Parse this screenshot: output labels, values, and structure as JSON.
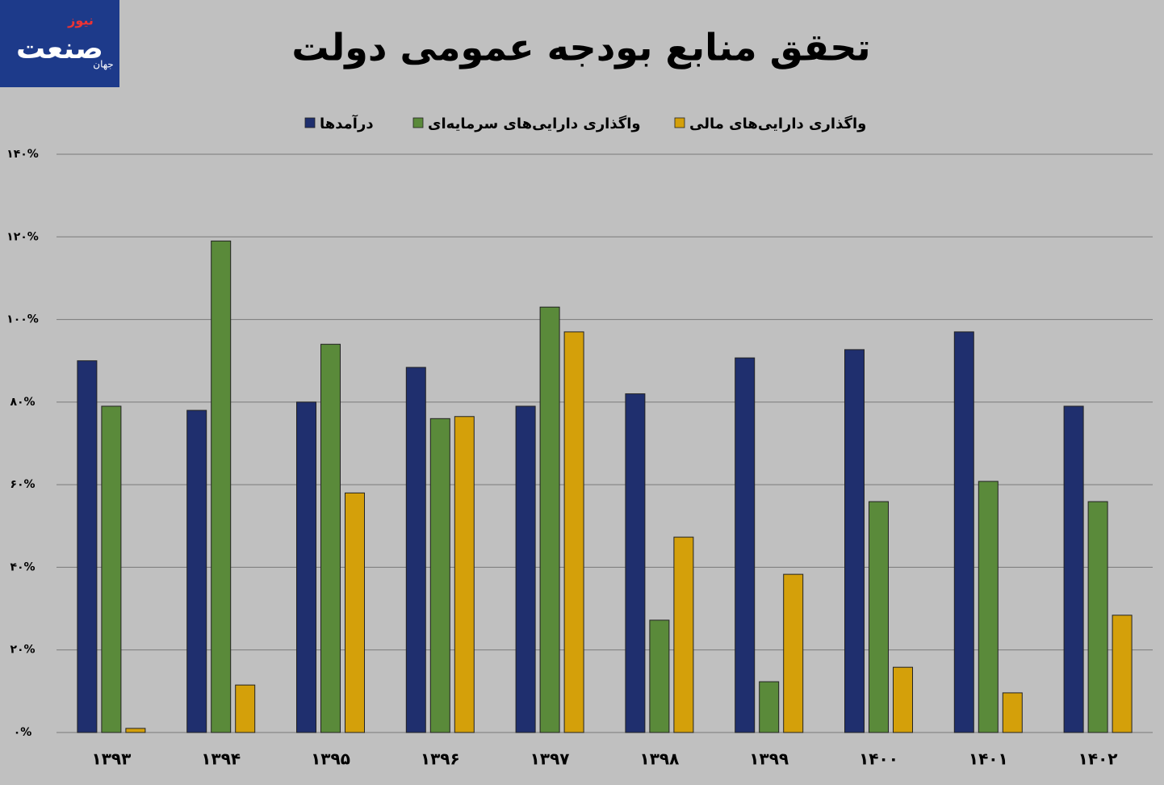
{
  "logo": {
    "main": "صنعت",
    "top": "نیوز",
    "side": "جهان"
  },
  "chart_data": {
    "type": "bar",
    "title": "تحقق منابع بودجه عمومی دولت",
    "categories": [
      "۱۳۹۳",
      "۱۳۹۴",
      "۱۳۹۵",
      "۱۳۹۶",
      "۱۳۹۷",
      "۱۳۹۸",
      "۱۳۹۹",
      "۱۴۰۰",
      "۱۴۰۱",
      "۱۴۰۲"
    ],
    "series": [
      {
        "name": "درآمدها",
        "color": "#1f2f6e",
        "values": [
          90,
          78,
          80,
          88.4,
          79,
          82,
          90.7,
          92.7,
          97,
          79
        ]
      },
      {
        "name": "واگذاری دارایی‌های سرمایه‌ای",
        "color": "#5a8a3a",
        "values": [
          79,
          119,
          94,
          76,
          103,
          27.2,
          12.3,
          55.9,
          60.8,
          55.9
        ]
      },
      {
        "name": "واگذاری دارایی‌های مالی",
        "color": "#d4a00a",
        "values": [
          1,
          11.5,
          58,
          76.5,
          97,
          47.3,
          38.3,
          15.8,
          9.6,
          28.4
        ]
      }
    ],
    "ylim": [
      0,
      140
    ],
    "yticks": [
      {
        "value": 0,
        "label": "۰%"
      },
      {
        "value": 20,
        "label": "۲۰%"
      },
      {
        "value": 40,
        "label": "۴۰%"
      },
      {
        "value": 60,
        "label": "۶۰%"
      },
      {
        "value": 80,
        "label": "۸۰%"
      },
      {
        "value": 100,
        "label": "۱۰۰%"
      },
      {
        "value": 120,
        "label": "۱۲۰%"
      },
      {
        "value": 140,
        "label": "۱۴۰%"
      }
    ],
    "grid": true,
    "legend": "top"
  }
}
